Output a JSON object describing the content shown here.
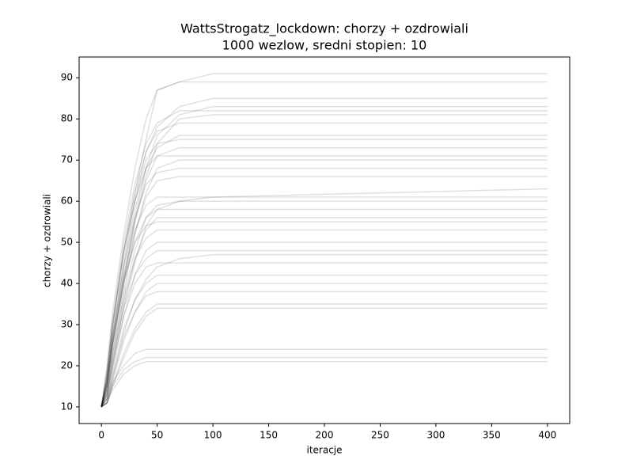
{
  "chart_data": {
    "type": "line",
    "title": "WattsStrogatz_lockdown: chorzy + ozdrowiali",
    "subtitle": "1000 wezlow, sredni stopien: 10",
    "x_label": "iteracje",
    "y_label": "chorzy + ozdrowiali",
    "x": [
      0,
      5,
      10,
      20,
      30,
      40,
      50,
      70,
      100,
      400
    ],
    "xlim": [
      -20,
      420
    ],
    "xticks": [
      0,
      50,
      100,
      150,
      200,
      250,
      300,
      350,
      400
    ],
    "ylim": [
      5.95,
      95.05
    ],
    "yticks": [
      10,
      20,
      30,
      40,
      50,
      60,
      70,
      80,
      90
    ],
    "grid": false,
    "opacity": 0.12,
    "series": [
      {
        "color": "#000000",
        "values": [
          10,
          18,
          30,
          48,
          62,
          75,
          87,
          89,
          91,
          91
        ]
      },
      {
        "color": "#000000",
        "values": [
          10,
          20,
          33,
          52,
          68,
          80,
          87,
          89,
          89,
          89
        ]
      },
      {
        "color": "#000000",
        "values": [
          10,
          17,
          28,
          45,
          60,
          72,
          78,
          83,
          85,
          85
        ]
      },
      {
        "color": "#000000",
        "values": [
          10,
          16,
          26,
          42,
          56,
          68,
          76,
          81,
          83,
          83
        ]
      },
      {
        "color": "#000000",
        "values": [
          10,
          19,
          31,
          50,
          64,
          74,
          79,
          82,
          82,
          82
        ]
      },
      {
        "color": "#000000",
        "values": [
          10,
          15,
          25,
          40,
          55,
          66,
          74,
          80,
          81,
          81
        ]
      },
      {
        "color": "#000000",
        "values": [
          10,
          18,
          30,
          48,
          62,
          72,
          77,
          79,
          79,
          79
        ]
      },
      {
        "color": "#000000",
        "values": [
          10,
          16,
          27,
          44,
          58,
          68,
          73,
          76,
          76,
          76
        ]
      },
      {
        "color": "#000000",
        "values": [
          10,
          17,
          29,
          47,
          60,
          70,
          74,
          75,
          75,
          75
        ]
      },
      {
        "color": "#000000",
        "values": [
          10,
          15,
          25,
          41,
          55,
          65,
          71,
          73,
          73,
          73
        ]
      },
      {
        "color": "#000000",
        "values": [
          10,
          18,
          30,
          48,
          60,
          68,
          71,
          71,
          71,
          71
        ]
      },
      {
        "color": "#000000",
        "values": [
          10,
          14,
          23,
          38,
          52,
          62,
          68,
          70,
          70,
          70
        ]
      },
      {
        "color": "#000000",
        "values": [
          10,
          16,
          27,
          44,
          56,
          64,
          67,
          68,
          68,
          68
        ]
      },
      {
        "color": "#000000",
        "values": [
          10,
          15,
          25,
          40,
          52,
          61,
          65,
          66,
          66,
          66
        ]
      },
      {
        "color": "#000000",
        "values": [
          10,
          13,
          20,
          34,
          45,
          54,
          58,
          60,
          61,
          63
        ]
      },
      {
        "color": "#000000",
        "values": [
          10,
          16,
          27,
          42,
          53,
          59,
          61,
          61,
          61,
          61
        ]
      },
      {
        "color": "#000000",
        "values": [
          10,
          14,
          23,
          37,
          48,
          56,
          59,
          60,
          60,
          60
        ]
      },
      {
        "color": "#000000",
        "values": [
          10,
          15,
          25,
          40,
          50,
          56,
          58,
          58,
          58,
          58
        ]
      },
      {
        "color": "#000000",
        "values": [
          10,
          13,
          21,
          35,
          46,
          53,
          56,
          56,
          56,
          56
        ]
      },
      {
        "color": "#000000",
        "values": [
          10,
          16,
          26,
          41,
          50,
          54,
          55,
          55,
          55,
          55
        ]
      },
      {
        "color": "#000000",
        "values": [
          10,
          14,
          22,
          36,
          46,
          51,
          53,
          53,
          53,
          53
        ]
      },
      {
        "color": "#000000",
        "values": [
          10,
          12,
          19,
          32,
          42,
          48,
          50,
          50,
          50,
          50
        ]
      },
      {
        "color": "#000000",
        "values": [
          10,
          13,
          21,
          34,
          42,
          46,
          48,
          48,
          48,
          48
        ]
      },
      {
        "color": "#000000",
        "values": [
          10,
          11,
          17,
          28,
          36,
          41,
          44,
          46,
          47,
          47
        ]
      },
      {
        "color": "#000000",
        "values": [
          10,
          13,
          20,
          32,
          40,
          44,
          45,
          45,
          45,
          45
        ]
      },
      {
        "color": "#000000",
        "values": [
          10,
          12,
          18,
          29,
          36,
          40,
          42,
          42,
          42,
          42
        ]
      },
      {
        "color": "#000000",
        "values": [
          10,
          11,
          16,
          26,
          33,
          38,
          40,
          40,
          40,
          40
        ]
      },
      {
        "color": "#000000",
        "values": [
          10,
          12,
          17,
          27,
          33,
          37,
          38,
          38,
          38,
          38
        ]
      },
      {
        "color": "#000000",
        "values": [
          10,
          11,
          15,
          23,
          29,
          33,
          35,
          35,
          35,
          35
        ]
      },
      {
        "color": "#000000",
        "values": [
          10,
          11,
          15,
          22,
          28,
          32,
          34,
          34,
          34,
          34
        ]
      },
      {
        "color": "#000000",
        "values": [
          10,
          12,
          16,
          20,
          23,
          24,
          24,
          24,
          24,
          24
        ]
      },
      {
        "color": "#000000",
        "values": [
          10,
          11,
          15,
          19,
          21,
          22,
          22,
          22,
          22,
          22
        ]
      },
      {
        "color": "#000000",
        "values": [
          10,
          11,
          14,
          18,
          20,
          21,
          21,
          21,
          21,
          21
        ]
      }
    ]
  }
}
